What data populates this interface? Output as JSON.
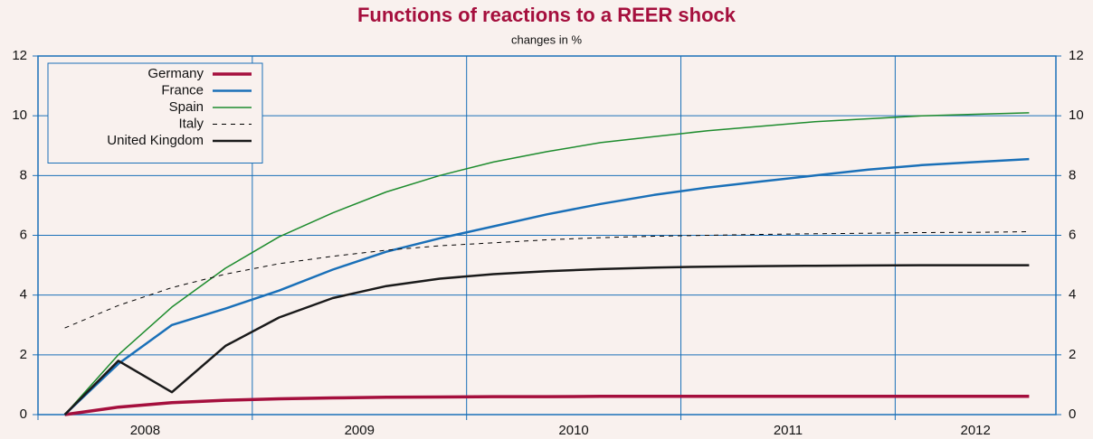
{
  "chart_data": {
    "type": "line",
    "title": "Functions of reactions to a REER shock",
    "subtitle": "changes in %",
    "categories": [
      "2008",
      null,
      null,
      null,
      "2009",
      null,
      null,
      null,
      "2010",
      null,
      null,
      null,
      "2011",
      null,
      null,
      null,
      "2012",
      null,
      null
    ],
    "series": [
      {
        "name": "Germany",
        "color": "#a50f3d",
        "values": [
          0,
          0.25,
          0.4,
          0.48,
          0.53,
          0.56,
          0.58,
          0.59,
          0.6,
          0.6,
          0.61,
          0.61,
          0.61,
          0.61,
          0.61,
          0.61,
          0.61,
          0.61,
          0.61
        ]
      },
      {
        "name": "France",
        "color": "#1a70b8",
        "values": [
          0,
          1.7,
          3.0,
          3.55,
          4.15,
          4.85,
          5.45,
          5.9,
          6.3,
          6.7,
          7.05,
          7.35,
          7.6,
          7.8,
          8.0,
          8.2,
          8.35,
          8.45,
          8.55
        ]
      },
      {
        "name": "Spain",
        "color": "#1e8c2e",
        "values": [
          0,
          2.0,
          3.6,
          4.9,
          5.95,
          6.75,
          7.45,
          8.0,
          8.45,
          8.8,
          9.1,
          9.3,
          9.5,
          9.65,
          9.8,
          9.9,
          10.0,
          10.05,
          10.1
        ]
      },
      {
        "name": "Italy",
        "color": "#000000",
        "linestyle": "dashed",
        "values": [
          2.9,
          3.65,
          4.25,
          4.7,
          5.05,
          5.3,
          5.5,
          5.65,
          5.75,
          5.85,
          5.92,
          5.97,
          6.0,
          6.03,
          6.05,
          6.07,
          6.09,
          6.1,
          6.12
        ]
      },
      {
        "name": "United Kingdom",
        "color": "#1a1a1a",
        "values": [
          0,
          1.8,
          0.75,
          2.3,
          3.25,
          3.9,
          4.3,
          4.55,
          4.7,
          4.8,
          4.87,
          4.92,
          4.95,
          4.97,
          4.98,
          4.99,
          5.0,
          5.0,
          5.0
        ]
      }
    ],
    "ylim": [
      0,
      12
    ],
    "yticks": [
      0,
      2,
      4,
      6,
      8,
      10,
      12
    ],
    "grid": true,
    "legend": "upper left"
  }
}
